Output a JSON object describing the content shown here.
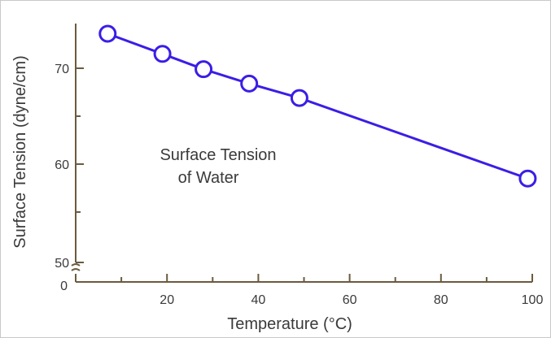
{
  "chart_data": {
    "type": "line",
    "title": "",
    "annotation": [
      "Surface Tension",
      "of Water"
    ],
    "xlabel": "Temperature (°C)",
    "ylabel": "Surface Tension (dyne/cm)",
    "xlim": [
      0,
      100
    ],
    "ylim": [
      50,
      75
    ],
    "xticks": [
      20,
      40,
      60,
      80,
      100
    ],
    "xtick_labels": [
      "20",
      "40",
      "60",
      "80",
      "100"
    ],
    "yticks": [
      50,
      60,
      70
    ],
    "ytick_labels": [
      "50",
      "60",
      "70"
    ],
    "y_break_label": "0",
    "grid": false,
    "marker": "open-circle",
    "colors": {
      "line": "#3a1ee6",
      "marker_fill": "#ffffff",
      "axis": "#6b5a3e",
      "text": "#3a3a3a"
    },
    "series": [
      {
        "x": [
          7,
          19,
          28,
          38,
          49,
          99
        ],
        "y": [
          73.6,
          71.5,
          69.9,
          68.4,
          66.9,
          58.5
        ]
      }
    ]
  }
}
